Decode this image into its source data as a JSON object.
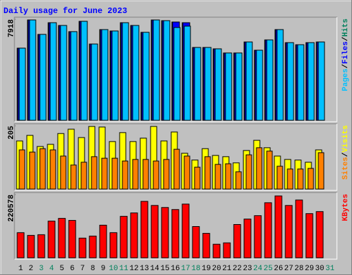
{
  "title": "Daily usage for June 2023",
  "legend_separator": "/",
  "chart_data": [
    {
      "type": "bar",
      "ylim": [
        0,
        7918
      ],
      "yticks": [
        7918
      ],
      "series": [
        {
          "name": "Pages",
          "color": "#00c0ff",
          "values": [
            5656,
            7864,
            6733,
            7649,
            7433,
            6949,
            7757,
            5979,
            7110,
            7002,
            7649,
            7433,
            6895,
            7864,
            7810,
            7272,
            7379,
            5710,
            5710,
            5602,
            5279,
            5279,
            6140,
            5494,
            6302,
            7110,
            6087,
            5925,
            6087,
            6140,
            0
          ]
        },
        {
          "name": "Files",
          "color": "#0000ff",
          "values": [
            5656,
            7864,
            6733,
            7649,
            7433,
            6949,
            7757,
            5979,
            7110,
            7002,
            7649,
            7433,
            6895,
            7864,
            7810,
            7703,
            7649,
            5710,
            5710,
            5602,
            5279,
            5279,
            6140,
            5494,
            6302,
            7110,
            6087,
            5925,
            6087,
            6140,
            0
          ]
        },
        {
          "name": "Hits",
          "color": "#00805c",
          "values": [
            5656,
            7864,
            6733,
            7649,
            7433,
            6949,
            7757,
            5979,
            7110,
            7002,
            7649,
            7433,
            6895,
            7864,
            7810,
            7703,
            7649,
            5710,
            5710,
            5602,
            5279,
            5279,
            6140,
            5494,
            6302,
            7110,
            6087,
            5925,
            6087,
            6140,
            0
          ]
        }
      ]
    },
    {
      "type": "bar",
      "ylim": [
        0,
        205
      ],
      "yticks": [
        205
      ],
      "series": [
        {
          "name": "Sites",
          "color": "#ff8000",
          "values": [
            127,
            120,
            131,
            127,
            107,
            78,
            87,
            105,
            100,
            100,
            91,
            96,
            96,
            91,
            96,
            129,
            107,
            71,
            105,
            80,
            82,
            56,
            111,
            134,
            123,
            74,
            65,
            65,
            67,
            118,
            0
          ]
        },
        {
          "name": "Visits",
          "color": "#ffff00",
          "values": [
            156,
            174,
            138,
            145,
            180,
            194,
            167,
            203,
            201,
            154,
            183,
            154,
            165,
            203,
            156,
            185,
            116,
            94,
            131,
            109,
            105,
            85,
            125,
            158,
            134,
            107,
            96,
            94,
            87,
            127,
            0
          ]
        }
      ]
    },
    {
      "type": "bar",
      "ylim": [
        0,
        220578
      ],
      "yticks": [
        220578
      ],
      "categories": [
        1,
        2,
        3,
        4,
        5,
        6,
        7,
        8,
        9,
        10,
        11,
        12,
        13,
        14,
        15,
        16,
        17,
        18,
        19,
        20,
        21,
        22,
        23,
        24,
        25,
        26,
        27,
        28,
        29,
        30,
        31
      ],
      "category_colors": [
        "#000000",
        "#000000",
        "#00805c",
        "#00805c",
        "#000000",
        "#000000",
        "#000000",
        "#000000",
        "#000000",
        "#00805c",
        "#00805c",
        "#000000",
        "#000000",
        "#000000",
        "#000000",
        "#000000",
        "#00805c",
        "#00805c",
        "#000000",
        "#000000",
        "#000000",
        "#000000",
        "#000000",
        "#00805c",
        "#00805c",
        "#000000",
        "#000000",
        "#000000",
        "#000000",
        "#000000",
        "#00805c"
      ],
      "series": [
        {
          "name": "KBytes",
          "color": "#ff0000",
          "values": [
            87758,
            78270,
            80642,
            128078,
            137565,
            130450,
            68783,
            75898,
            113847,
            87758,
            144681,
            156540,
            196861,
            182630,
            175514,
            168399,
            187373,
            109103,
            85386,
            47436,
            52179,
            116218,
            135193,
            147052,
            192117,
            215835,
            182630,
            201604,
            154168,
            161283,
            0
          ]
        }
      ]
    }
  ]
}
